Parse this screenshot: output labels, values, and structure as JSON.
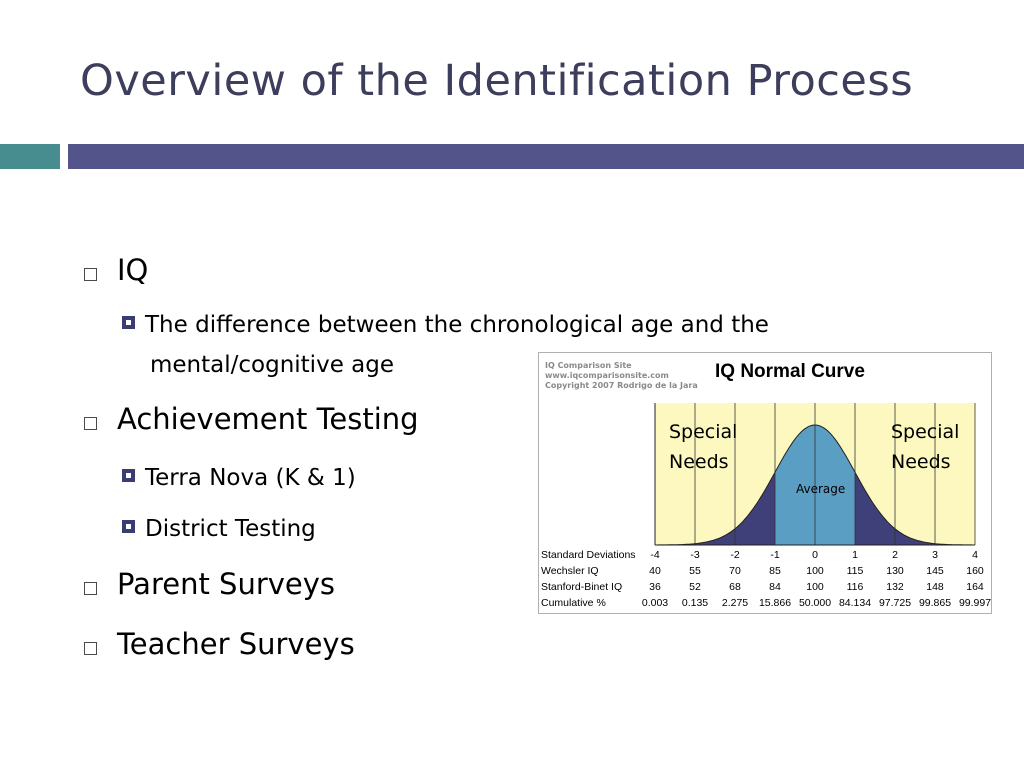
{
  "slide": {
    "title": "Overview of the Identification Process",
    "bullets": [
      {
        "text": "IQ"
      },
      {
        "text": "The difference between the chronological age and the"
      },
      {
        "text": "mental/cognitive age"
      },
      {
        "text": "Achievement Testing"
      },
      {
        "text": "Terra Nova (K & 1)"
      },
      {
        "text": "District Testing"
      },
      {
        "text": "Parent Surveys"
      },
      {
        "text": "Teacher Surveys"
      }
    ]
  },
  "figure": {
    "site_lines": [
      "IQ Comparison Site",
      "www.iqcomparisonsite.com",
      "Copyright 2007 Rodrigo de la Jara"
    ],
    "title": "IQ Normal Curve",
    "left_label": [
      "Special",
      "Needs"
    ],
    "right_label": [
      "Special",
      "Needs"
    ],
    "center_label": "Average",
    "colors": {
      "plot_bg": "#fcf8c0",
      "center_fill": "#5b9ec4",
      "tail_fill": "#3f3f7a"
    },
    "table": {
      "rows": [
        {
          "label": "Standard Deviations",
          "values": [
            "-4",
            "-3",
            "-2",
            "-1",
            "0",
            "1",
            "2",
            "3",
            "4"
          ]
        },
        {
          "label": "Wechsler IQ",
          "values": [
            "40",
            "55",
            "70",
            "85",
            "100",
            "115",
            "130",
            "145",
            "160"
          ]
        },
        {
          "label": "Stanford-Binet IQ",
          "values": [
            "36",
            "52",
            "68",
            "84",
            "100",
            "116",
            "132",
            "148",
            "164"
          ]
        },
        {
          "label": "Cumulative %",
          "values": [
            "0.003",
            "0.135",
            "2.275",
            "15.866",
            "50.000",
            "84.134",
            "97.725",
            "99.865",
            "99.997"
          ]
        }
      ]
    }
  },
  "chart_data": {
    "type": "area",
    "title": "IQ Normal Curve",
    "x": [
      -4,
      -3,
      -2,
      -1,
      0,
      1,
      2,
      3,
      4
    ],
    "xlim": [
      -4,
      4
    ],
    "distribution": "normal",
    "shaded_regions": [
      {
        "name": "Special Needs",
        "from": -4,
        "to": -1
      },
      {
        "name": "Average",
        "from": -1,
        "to": 1
      },
      {
        "name": "Special Needs",
        "from": 1,
        "to": 4
      }
    ]
  }
}
